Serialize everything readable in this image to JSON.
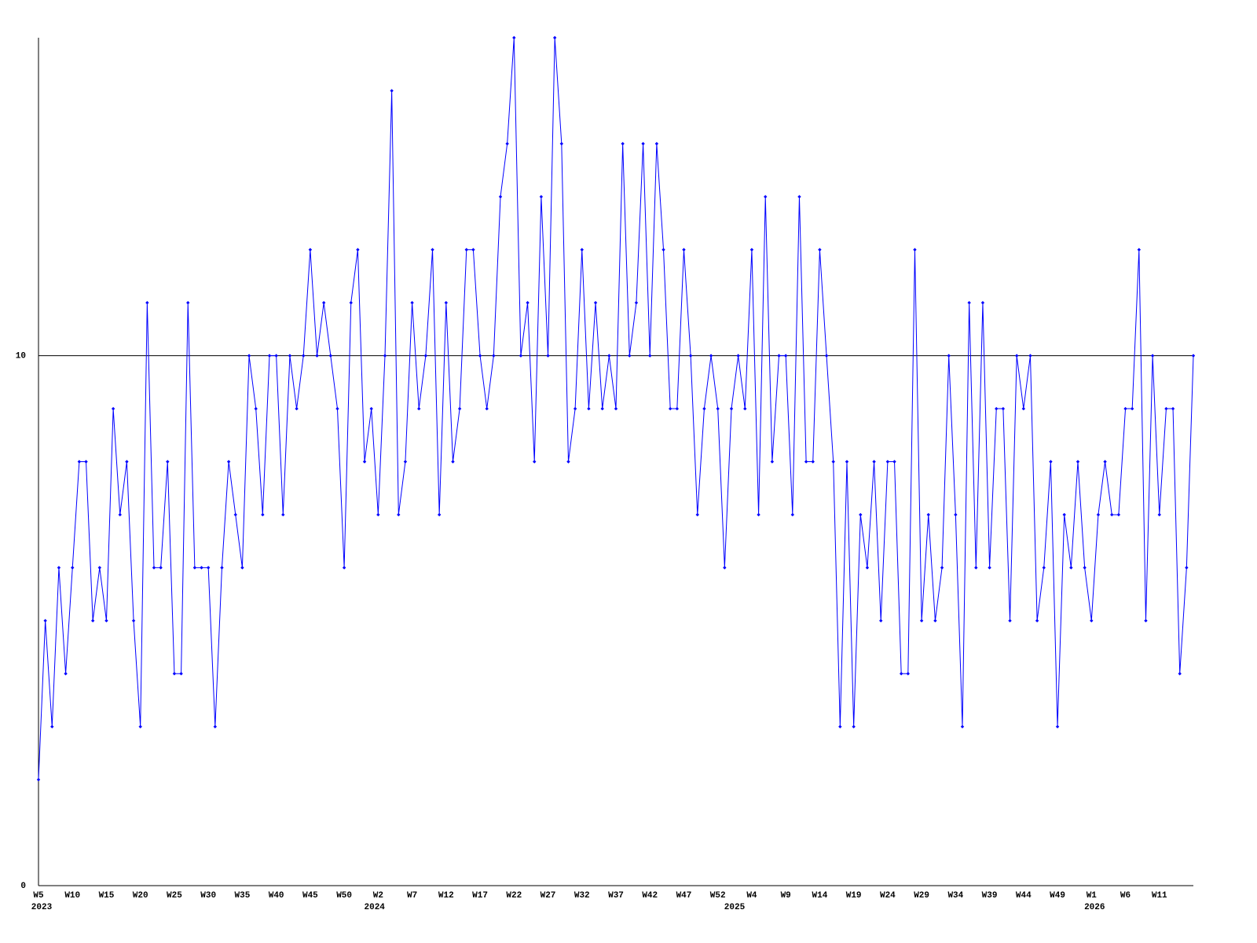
{
  "chart_data": {
    "type": "line",
    "color": "#0000ff",
    "ylim": [
      0,
      16
    ],
    "yticks": [
      0,
      10
    ],
    "grid": true,
    "categories": [
      "W5",
      null,
      null,
      null,
      null,
      "W10",
      null,
      null,
      null,
      null,
      "W15",
      null,
      null,
      null,
      null,
      "W20",
      null,
      null,
      null,
      null,
      "W25",
      null,
      null,
      null,
      null,
      "W30",
      null,
      null,
      null,
      null,
      "W35",
      null,
      null,
      null,
      null,
      "W40",
      null,
      null,
      null,
      null,
      "W45",
      null,
      null,
      null,
      null,
      "W50",
      null,
      null,
      null,
      null,
      "W2",
      null,
      null,
      null,
      null,
      "W7",
      null,
      null,
      null,
      null,
      "W12",
      null,
      null,
      null,
      null,
      "W17",
      null,
      null,
      null,
      null,
      "W22",
      null,
      null,
      null,
      null,
      "W27",
      null,
      null,
      null,
      null,
      "W32",
      null,
      null,
      null,
      null,
      "W37",
      null,
      null,
      null,
      null,
      "W42",
      null,
      null,
      null,
      null,
      "W47",
      null,
      null,
      null,
      null,
      "W52",
      null,
      null,
      null,
      null,
      "W4",
      null,
      null,
      null,
      null,
      "W9",
      null,
      null,
      null,
      null,
      "W14",
      null,
      null,
      null,
      null,
      "W19",
      null,
      null,
      null,
      null,
      "W24",
      null,
      null,
      null,
      null,
      "W29",
      null,
      null,
      null,
      null,
      "W34",
      null,
      null,
      null,
      null,
      "W39",
      null,
      null,
      null,
      null,
      "W44",
      null,
      null,
      null,
      null,
      "W49",
      null,
      null,
      null,
      null,
      "W1",
      null,
      null,
      null,
      null,
      "W6",
      null,
      null,
      null,
      null,
      "W11",
      null,
      null,
      null,
      null,
      null
    ],
    "category_years": [
      "2023",
      null,
      null,
      null,
      null,
      null,
      null,
      null,
      null,
      null,
      null,
      null,
      null,
      null,
      null,
      null,
      null,
      null,
      null,
      null,
      null,
      null,
      null,
      null,
      null,
      null,
      null,
      null,
      null,
      null,
      null,
      null,
      null,
      null,
      null,
      null,
      null,
      null,
      null,
      null,
      null,
      null,
      null,
      null,
      null,
      null,
      null,
      null,
      null,
      "2024",
      null,
      null,
      null,
      null,
      null,
      null,
      null,
      null,
      null,
      null,
      null,
      null,
      null,
      null,
      null,
      null,
      null,
      null,
      null,
      null,
      null,
      null,
      null,
      null,
      null,
      null,
      null,
      null,
      null,
      null,
      null,
      null,
      null,
      null,
      null,
      null,
      null,
      null,
      null,
      null,
      null,
      null,
      null,
      null,
      null,
      null,
      null,
      null,
      null,
      null,
      null,
      null,
      "2025",
      null,
      null,
      null,
      null,
      null,
      null,
      null,
      null,
      null,
      null,
      null,
      null,
      null,
      null,
      null,
      null,
      null,
      null,
      null,
      null,
      null,
      null,
      null,
      null,
      null,
      null,
      null,
      null,
      null,
      null,
      null,
      null,
      null,
      null,
      null,
      null,
      null,
      null,
      null,
      null,
      null,
      null,
      null,
      null,
      null,
      null,
      null,
      null,
      null,
      null,
      null,
      null,
      "2026",
      null,
      null,
      null,
      null,
      null,
      null,
      null,
      null,
      null,
      null,
      null,
      null,
      null,
      null,
      null
    ],
    "values": [
      2,
      5,
      3,
      6,
      4,
      6,
      8,
      8,
      5,
      6,
      5,
      9,
      7,
      8,
      5,
      3,
      11,
      6,
      6,
      8,
      4,
      4,
      11,
      6,
      6,
      6,
      3,
      6,
      8,
      7,
      6,
      10,
      9,
      7,
      10,
      10,
      7,
      10,
      9,
      10,
      12,
      10,
      11,
      10,
      9,
      6,
      11,
      12,
      8,
      9,
      7,
      10,
      15,
      7,
      8,
      11,
      9,
      10,
      12,
      7,
      11,
      8,
      9,
      12,
      12,
      10,
      9,
      10,
      13,
      14,
      16,
      10,
      11,
      8,
      13,
      10,
      16,
      14,
      8,
      9,
      12,
      9,
      11,
      9,
      10,
      9,
      14,
      10,
      11,
      14,
      10,
      14,
      12,
      9,
      9,
      12,
      10,
      7,
      9,
      10,
      9,
      6,
      9,
      10,
      9,
      12,
      7,
      13,
      8,
      10,
      10,
      7,
      13,
      8,
      8,
      12,
      10,
      8,
      3,
      8,
      3,
      7,
      6,
      8,
      5,
      8,
      8,
      4,
      4,
      12,
      5,
      7,
      5,
      6,
      10,
      7,
      3,
      11,
      6,
      11,
      6,
      9,
      9,
      5,
      10,
      9,
      10,
      5,
      6,
      8,
      3,
      7,
      6,
      8,
      6,
      5,
      7,
      8,
      7,
      7,
      9,
      9,
      12,
      5,
      10,
      7,
      9,
      9,
      4,
      6,
      10
    ]
  }
}
